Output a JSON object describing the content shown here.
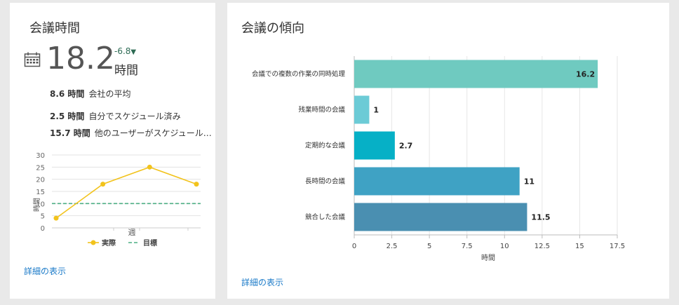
{
  "left_card": {
    "title": "会議時間",
    "big_value": "18.2",
    "delta": "-6.8",
    "delta_arrow": "▼",
    "unit": "時間",
    "stats": [
      {
        "value": "8.6 時間",
        "label": "会社の平均"
      },
      {
        "value": "2.5 時間",
        "label": "自分でスケジュール済み"
      },
      {
        "value": "15.7 時間",
        "label": "他のユーザーがスケジュール…"
      }
    ],
    "link": "詳細の表示"
  },
  "right_card": {
    "title": "会議の傾向",
    "link": "詳細の表示"
  },
  "colors": {
    "actual_line": "#f2c31c",
    "target_line": "#4caf84",
    "bars": [
      "#6fcac0",
      "#6ccbd6",
      "#06b0c6",
      "#3fa2c4",
      "#4a8fb1"
    ]
  },
  "chart_data": [
    {
      "type": "line",
      "x": [
        1,
        2,
        3,
        4
      ],
      "series": [
        {
          "name": "実際",
          "values": [
            4,
            18,
            25,
            18
          ]
        },
        {
          "name": "目標",
          "values": [
            10,
            10,
            10,
            10
          ],
          "style": "dashed"
        }
      ],
      "xlabel": "週",
      "ylabel": "時間",
      "ylim": [
        0,
        30
      ],
      "yticks": [
        0,
        5,
        10,
        15,
        20,
        25,
        30
      ],
      "grid": true,
      "legend": "bottom"
    },
    {
      "type": "bar",
      "orientation": "horizontal",
      "categories": [
        "会議での複数の作業の同時処理",
        "残業時間の会議",
        "定期的な会議",
        "長時間の会議",
        "競合した会議"
      ],
      "values": [
        16.2,
        1,
        2.7,
        11,
        11.5
      ],
      "value_labels": [
        "16.2",
        "1",
        "2.7",
        "11",
        "11.5"
      ],
      "xlabel": "時間",
      "xlim": [
        0,
        17.5
      ],
      "xticks": [
        "0",
        "2.5",
        "5",
        "7.5",
        "10",
        "12.5",
        "15",
        "17.5"
      ],
      "grid": true
    }
  ]
}
